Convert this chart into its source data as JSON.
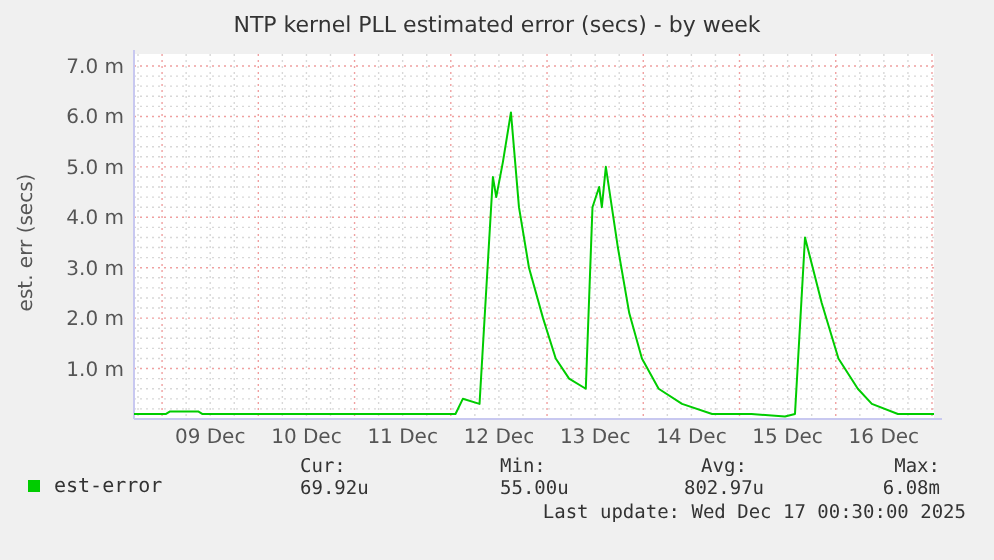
{
  "chart_data": {
    "type": "line",
    "title": "NTP kernel PLL estimated error (secs) - by week",
    "ylabel": "est. err (secs)",
    "xlim": [
      "2025-12-08T17:00",
      "2025-12-17T00:30"
    ],
    "ylim": [
      0,
      7
    ],
    "xticks": [
      {
        "value": "2025-12-08T18:00",
        "label": null
      },
      {
        "value": "2025-12-09T00:00",
        "label": null
      },
      {
        "value": "2025-12-09T06:00",
        "label": null
      },
      {
        "value": "2025-12-09T12:00",
        "label": "09 Dec"
      },
      {
        "value": "2025-12-09T18:00",
        "label": null
      },
      {
        "value": "2025-12-10T00:00",
        "label": null
      },
      {
        "value": "2025-12-10T06:00",
        "label": null
      },
      {
        "value": "2025-12-10T12:00",
        "label": "10 Dec"
      },
      {
        "value": "2025-12-10T18:00",
        "label": null
      },
      {
        "value": "2025-12-11T00:00",
        "label": null
      },
      {
        "value": "2025-12-11T06:00",
        "label": null
      },
      {
        "value": "2025-12-11T12:00",
        "label": "11 Dec"
      },
      {
        "value": "2025-12-11T18:00",
        "label": null
      },
      {
        "value": "2025-12-12T00:00",
        "label": null
      },
      {
        "value": "2025-12-12T06:00",
        "label": null
      },
      {
        "value": "2025-12-12T12:00",
        "label": "12 Dec"
      },
      {
        "value": "2025-12-12T18:00",
        "label": null
      },
      {
        "value": "2025-12-13T00:00",
        "label": null
      },
      {
        "value": "2025-12-13T06:00",
        "label": null
      },
      {
        "value": "2025-12-13T12:00",
        "label": "13 Dec"
      },
      {
        "value": "2025-12-13T18:00",
        "label": null
      },
      {
        "value": "2025-12-14T00:00",
        "label": null
      },
      {
        "value": "2025-12-14T06:00",
        "label": null
      },
      {
        "value": "2025-12-14T12:00",
        "label": "14 Dec"
      },
      {
        "value": "2025-12-14T18:00",
        "label": null
      },
      {
        "value": "2025-12-15T00:00",
        "label": null
      },
      {
        "value": "2025-12-15T06:00",
        "label": null
      },
      {
        "value": "2025-12-15T12:00",
        "label": "15 Dec"
      },
      {
        "value": "2025-12-15T18:00",
        "label": null
      },
      {
        "value": "2025-12-16T00:00",
        "label": null
      },
      {
        "value": "2025-12-16T06:00",
        "label": null
      },
      {
        "value": "2025-12-16T12:00",
        "label": "16 Dec"
      },
      {
        "value": "2025-12-16T18:00",
        "label": null
      },
      {
        "value": "2025-12-17T00:00",
        "label": null
      }
    ],
    "yticks": [
      {
        "value": 0.2,
        "label": null
      },
      {
        "value": 0.4,
        "label": null
      },
      {
        "value": 0.6,
        "label": null
      },
      {
        "value": 0.8,
        "label": null
      },
      {
        "value": 1,
        "label": "1.0 m"
      },
      {
        "value": 1.2,
        "label": null
      },
      {
        "value": 1.4,
        "label": null
      },
      {
        "value": 1.6,
        "label": null
      },
      {
        "value": 1.8,
        "label": null
      },
      {
        "value": 2,
        "label": "2.0 m"
      },
      {
        "value": 2.2,
        "label": null
      },
      {
        "value": 2.4,
        "label": null
      },
      {
        "value": 2.6,
        "label": null
      },
      {
        "value": 2.8,
        "label": null
      },
      {
        "value": 3,
        "label": "3.0 m"
      },
      {
        "value": 3.2,
        "label": null
      },
      {
        "value": 3.4,
        "label": null
      },
      {
        "value": 3.6,
        "label": null
      },
      {
        "value": 3.8,
        "label": null
      },
      {
        "value": 4,
        "label": "4.0 m"
      },
      {
        "value": 4.2,
        "label": null
      },
      {
        "value": 4.4,
        "label": null
      },
      {
        "value": 4.6,
        "label": null
      },
      {
        "value": 4.8,
        "label": null
      },
      {
        "value": 5,
        "label": "5.0 m"
      },
      {
        "value": 5.2,
        "label": null
      },
      {
        "value": 5.4,
        "label": null
      },
      {
        "value": 5.6,
        "label": null
      },
      {
        "value": 5.8,
        "label": null
      },
      {
        "value": 6,
        "label": "6.0 m"
      },
      {
        "value": 6.2,
        "label": null
      },
      {
        "value": 6.4,
        "label": null
      },
      {
        "value": 6.6,
        "label": null
      },
      {
        "value": 6.8,
        "label": null
      },
      {
        "value": 7,
        "label": "7.0 m"
      }
    ],
    "grid": true,
    "legend": "bottom",
    "marker": "none",
    "line_style": "solid",
    "series": [
      {
        "name": "est-error",
        "color": "#00cc00",
        "x": [
          "2025-12-08T17:00",
          "2025-12-09T01:00",
          "2025-12-09T02:00",
          "2025-12-09T09:00",
          "2025-12-09T10:00",
          "2025-12-10T12:00",
          "2025-12-11T12:00",
          "2025-12-12T01:10",
          "2025-12-12T03:00",
          "2025-12-12T07:10",
          "2025-12-12T10:30",
          "2025-12-12T11:20",
          "2025-12-12T13:00",
          "2025-12-12T15:00",
          "2025-12-12T17:00",
          "2025-12-12T19:30",
          "2025-12-12T23:00",
          "2025-12-13T02:10",
          "2025-12-13T05:30",
          "2025-12-13T09:40",
          "2025-12-13T11:20",
          "2025-12-13T13:00",
          "2025-12-13T13:40",
          "2025-12-13T14:40",
          "2025-12-13T17:40",
          "2025-12-13T20:30",
          "2025-12-13T23:40",
          "2025-12-14T03:50",
          "2025-12-14T09:40",
          "2025-12-14T17:10",
          "2025-12-15T03:00",
          "2025-12-15T11:20",
          "2025-12-15T13:50",
          "2025-12-15T16:20",
          "2025-12-15T20:30",
          "2025-12-16T00:40",
          "2025-12-16T05:30",
          "2025-12-16T09:00",
          "2025-12-16T15:30",
          "2025-12-16T22:00",
          "2025-12-17T00:30"
        ],
        "values": [
          0.1,
          0.1,
          0.15,
          0.15,
          0.1,
          0.1,
          0.1,
          0.1,
          0.4,
          0.3,
          4.8,
          4.4,
          5.1,
          6.08,
          4.2,
          3.0,
          2.0,
          1.2,
          0.8,
          0.6,
          4.2,
          4.6,
          4.2,
          5.0,
          3.4,
          2.1,
          1.2,
          0.6,
          0.3,
          0.1,
          0.1,
          0.05,
          0.1,
          3.6,
          2.3,
          1.2,
          0.6,
          0.3,
          0.1,
          0.1,
          0.1
        ]
      }
    ],
    "annotations": [
      "Cur:",
      "69.92u",
      "Min:",
      "55.00u",
      "Avg:",
      "802.97u",
      "Max:",
      "6.08m",
      "Last update: Wed Dec 17 00:30:00 2025"
    ]
  }
}
